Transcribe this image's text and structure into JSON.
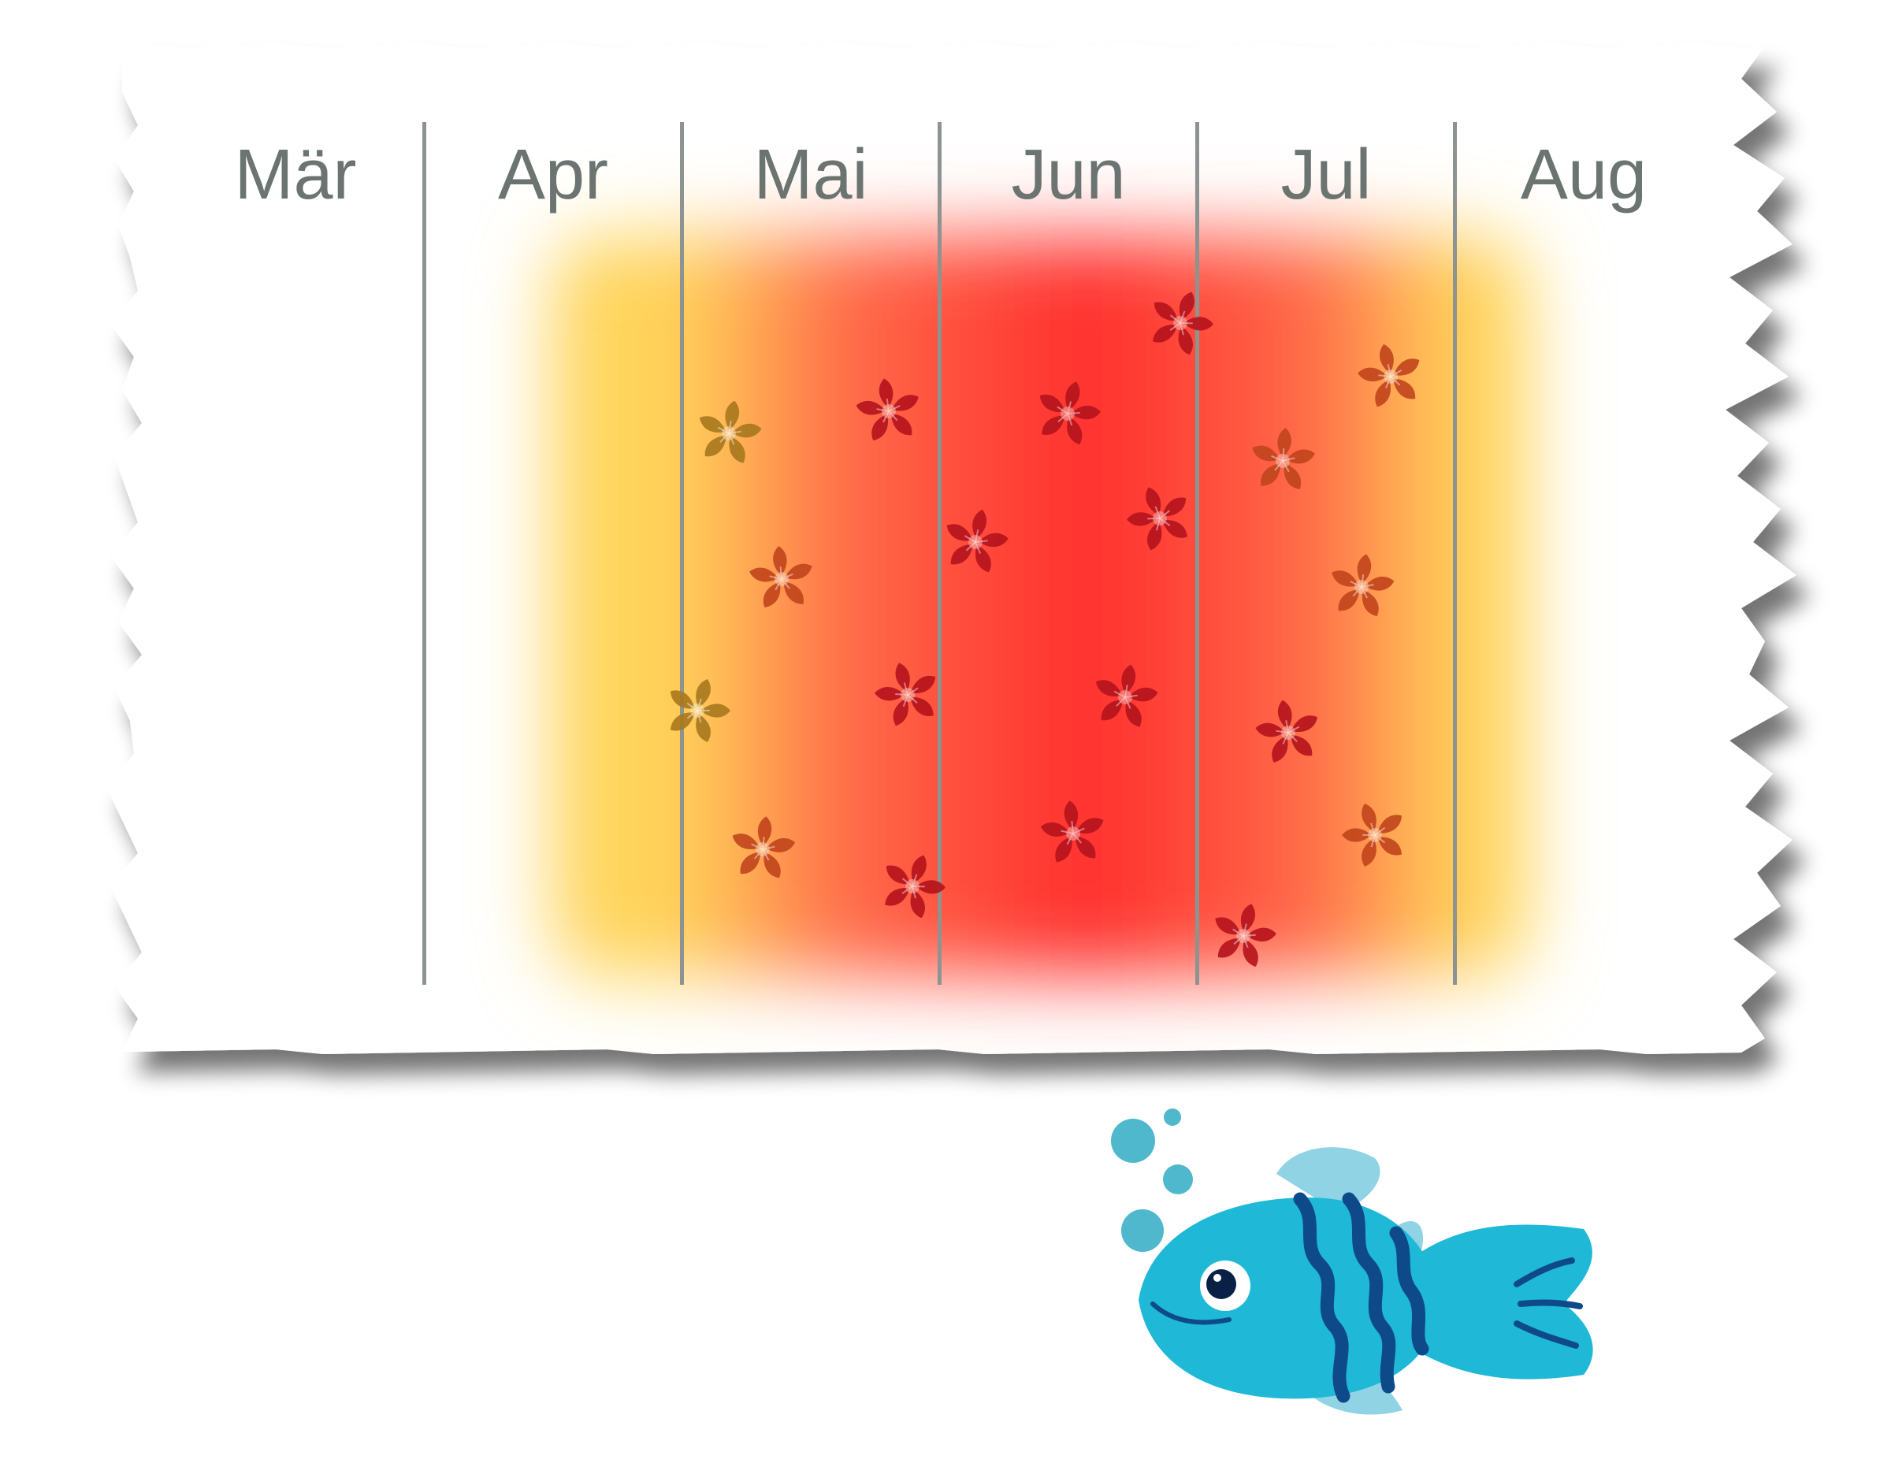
{
  "calendar": {
    "months": [
      "Mär",
      "Apr",
      "Mai",
      "Jun",
      "Jul",
      "Aug"
    ],
    "label_color": "#6b7471",
    "divider_color": "#8c9391"
  },
  "season": {
    "peak_color": "#ff2e2e",
    "mid_color": "#ff6a4a",
    "edge_color": "#ffd45a",
    "icon": "cherry-blossom-icon",
    "peak_flower_color": "#b5131c",
    "mid_flower_color": "#c2451c",
    "edge_flower_color": "#a8781e"
  },
  "mascot": {
    "icon": "fish-icon",
    "body_color": "#1fb8d6",
    "stripe_color": "#0e4a8a",
    "fin_color": "#8fd3e4",
    "bubble_color": "#4fb8cc"
  }
}
